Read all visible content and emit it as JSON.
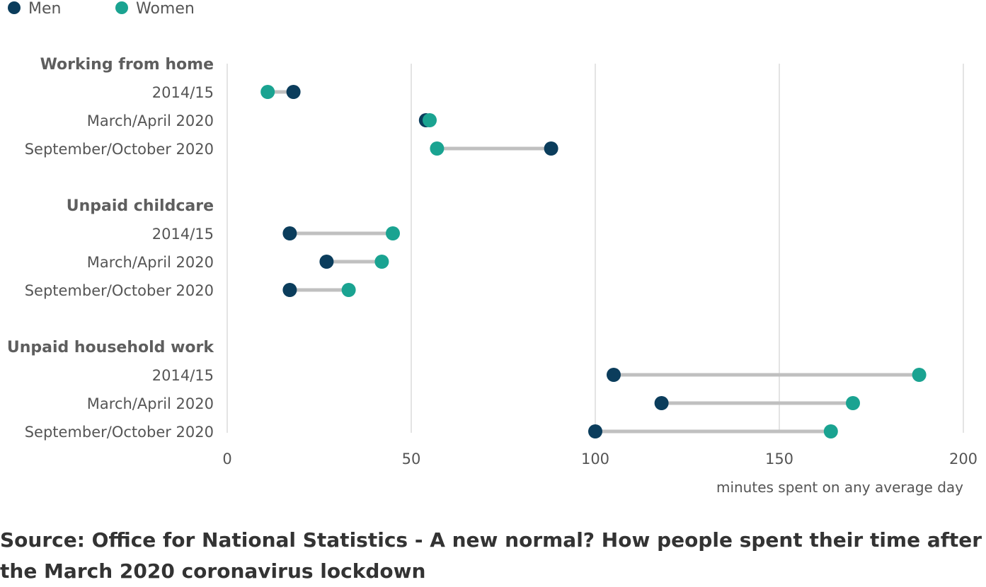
{
  "chart_data": {
    "type": "dumbbell",
    "legend": {
      "placement": "top-left",
      "entries": [
        {
          "name": "Men",
          "color": "#0b3d5c"
        },
        {
          "name": "Women",
          "color": "#1aa391"
        }
      ]
    },
    "x_axis": {
      "label": "minutes spent on any average day",
      "lim": [
        0,
        200
      ],
      "ticks": [
        "0",
        "50",
        "100",
        "150",
        "200"
      ],
      "grid": true
    },
    "connector_color": "#c0c0c0",
    "groups": [
      {
        "label": "Working from home",
        "rows": [
          {
            "label": "2014/15",
            "men": 18,
            "women": 11
          },
          {
            "label": "March/April 2020",
            "men": 54,
            "women": 55
          },
          {
            "label": "September/October 2020",
            "men": 88,
            "women": 57
          }
        ]
      },
      {
        "label": "Unpaid childcare",
        "rows": [
          {
            "label": "2014/15",
            "men": 17,
            "women": 45
          },
          {
            "label": "March/April 2020",
            "men": 27,
            "women": 42
          },
          {
            "label": "September/October 2020",
            "men": 17,
            "women": 33
          }
        ]
      },
      {
        "label": "Unpaid household work",
        "rows": [
          {
            "label": "2014/15",
            "men": 105,
            "women": 188
          },
          {
            "label": "March/April 2020",
            "men": 118,
            "women": 170
          },
          {
            "label": "September/October 2020",
            "men": 100,
            "women": 164
          }
        ]
      }
    ]
  },
  "source": "Source: Office for National Statistics - A new normal? How people spent their time after the March 2020 coronavirus lockdown"
}
